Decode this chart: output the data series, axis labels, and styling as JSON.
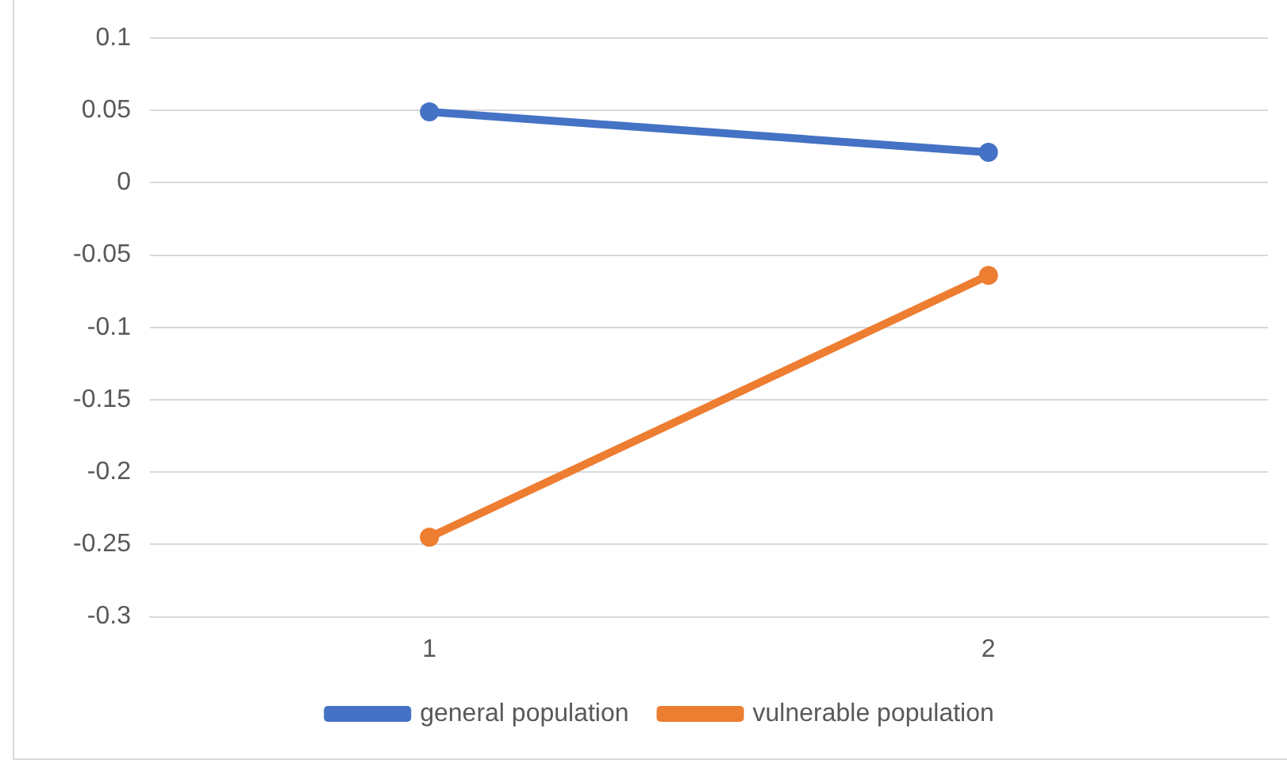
{
  "chart_data": {
    "type": "line",
    "categories": [
      "1",
      "2"
    ],
    "series": [
      {
        "name": "general population",
        "color": "#4472c4",
        "values": [
          0.049,
          0.021
        ]
      },
      {
        "name": "vulnerable population",
        "color": "#ed7d31",
        "values": [
          -0.245,
          -0.064
        ]
      }
    ],
    "ylim": [
      -0.3,
      0.1
    ],
    "yticks": [
      -0.3,
      -0.25,
      -0.2,
      -0.15,
      -0.1,
      -0.05,
      0,
      0.05,
      0.1
    ],
    "grid": "y",
    "legend": "bottom",
    "marker": "circle",
    "line_style": "solid"
  }
}
